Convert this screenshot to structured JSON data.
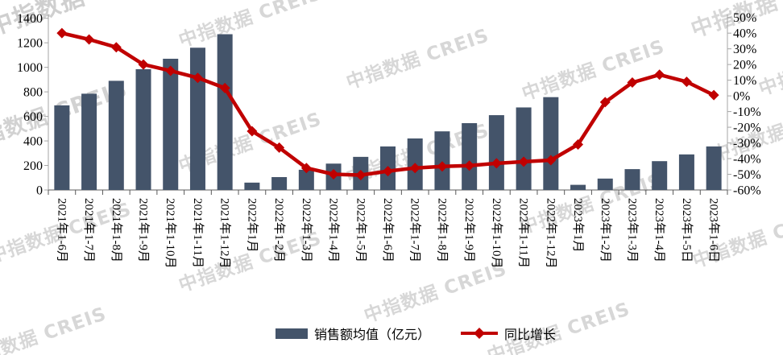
{
  "watermark_text": "中指数据 CREIS",
  "chart_data": {
    "type": "bar+line combo",
    "title": "",
    "categories": [
      "2021年1-6月",
      "2021年1-7月",
      "2021年1-8月",
      "2021年1-9月",
      "2021年1-10月",
      "2021年1-11月",
      "2021年1-12月",
      "2022年1月",
      "2022年1-2月",
      "2022年1-3月",
      "2022年1-4月",
      "2022年1-5月",
      "2022年1-6月",
      "2022年1-7月",
      "2022年1-8月",
      "2022年1-9月",
      "2022年1-10月",
      "2022年1-11月",
      "2022年1-12月",
      "2023年1月",
      "2023年1-2月",
      "2023年1-3月",
      "2023年1-4月",
      "2023年1-5日",
      "2023年1-6日"
    ],
    "series": [
      {
        "name": "销售额均值（亿元）",
        "type": "bar",
        "axis": "left",
        "color": "#44546A",
        "values": [
          690,
          785,
          890,
          985,
          1070,
          1160,
          1270,
          60,
          105,
          165,
          215,
          270,
          355,
          420,
          478,
          545,
          610,
          673,
          757,
          42,
          93,
          170,
          235,
          290,
          355
        ]
      },
      {
        "name": "同比增长",
        "type": "line",
        "axis": "right",
        "color": "#C00000",
        "marker": "diamond",
        "values_percent": [
          40,
          36,
          31,
          20,
          16,
          11.5,
          5,
          -22.5,
          -33,
          -46,
          -50,
          -50.5,
          -48,
          -46,
          -45,
          -44.5,
          -43,
          -42,
          -41,
          -31,
          -4,
          8.5,
          13.5,
          9,
          0.5
        ]
      }
    ],
    "left_axis": {
      "min": 0,
      "max": 1400,
      "step": 200,
      "ticks": [
        0,
        200,
        400,
        600,
        800,
        1000,
        1200,
        1400
      ]
    },
    "right_axis": {
      "min": -60,
      "max": 50,
      "step": 10,
      "format": "percent",
      "ticks": [
        50,
        40,
        30,
        20,
        10,
        0,
        -10,
        -20,
        -30,
        -40,
        -50,
        -60
      ]
    },
    "grid": false,
    "legend_position": "bottom",
    "axis_color": "#A6A6A6",
    "tick_color": "#595959",
    "text_color": "#000000"
  }
}
